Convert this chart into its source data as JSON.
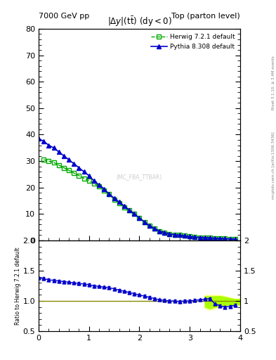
{
  "title_left": "7000 GeV pp",
  "title_right": "Top (parton level)",
  "plot_title": "|\\Delta y|(t\\bar{t}) (dy < 0)",
  "ylabel_ratio": "Ratio to Herwig 7.2.1 default",
  "right_label_top": "Rivet 3.1.10, ≥ 3.4M events",
  "right_label_bottom": "mcplots.cern.ch [arXiv:1306.3436]",
  "watermark": "(MC_FBA_TTBAR)",
  "herwig_x": [
    0.1,
    0.2,
    0.3,
    0.4,
    0.5,
    0.6,
    0.7,
    0.8,
    0.9,
    1.0,
    1.1,
    1.2,
    1.3,
    1.4,
    1.5,
    1.6,
    1.7,
    1.8,
    1.9,
    2.0,
    2.1,
    2.2,
    2.3,
    2.4,
    2.5,
    2.6,
    2.7,
    2.8,
    2.9,
    3.0,
    3.1,
    3.2,
    3.3,
    3.4,
    3.5,
    3.6,
    3.7,
    3.8,
    3.9
  ],
  "herwig_y": [
    30.5,
    30.0,
    29.5,
    28.5,
    27.5,
    26.5,
    25.5,
    24.5,
    23.5,
    22.5,
    21.5,
    20.5,
    19.0,
    17.5,
    15.5,
    14.0,
    12.5,
    11.5,
    10.0,
    8.5,
    7.0,
    5.5,
    4.5,
    3.5,
    3.0,
    2.5,
    2.2,
    2.0,
    1.8,
    1.5,
    1.3,
    1.2,
    1.1,
    1.0,
    0.9,
    0.8,
    0.7,
    0.6,
    0.5
  ],
  "pythia_x": [
    0.0,
    0.1,
    0.2,
    0.3,
    0.4,
    0.5,
    0.6,
    0.7,
    0.8,
    0.9,
    1.0,
    1.1,
    1.2,
    1.3,
    1.4,
    1.5,
    1.6,
    1.7,
    1.8,
    1.9,
    2.0,
    2.1,
    2.2,
    2.3,
    2.4,
    2.5,
    2.6,
    2.7,
    2.8,
    2.9,
    3.0,
    3.1,
    3.2,
    3.3,
    3.4,
    3.5,
    3.6,
    3.7,
    3.8,
    3.9
  ],
  "pythia_y": [
    38.5,
    37.5,
    36.0,
    35.0,
    33.5,
    32.0,
    30.5,
    29.0,
    27.5,
    26.0,
    24.5,
    22.5,
    21.0,
    19.5,
    17.5,
    16.0,
    14.5,
    13.0,
    11.5,
    10.0,
    8.5,
    7.0,
    5.5,
    4.5,
    3.5,
    3.0,
    2.5,
    2.2,
    2.0,
    1.8,
    1.5,
    1.3,
    1.2,
    1.1,
    1.0,
    0.9,
    0.8,
    0.7,
    0.6,
    0.5
  ],
  "ratio_x": [
    0.0,
    0.1,
    0.2,
    0.3,
    0.4,
    0.5,
    0.6,
    0.7,
    0.8,
    0.9,
    1.0,
    1.1,
    1.2,
    1.3,
    1.4,
    1.5,
    1.6,
    1.7,
    1.8,
    1.9,
    2.0,
    2.1,
    2.2,
    2.3,
    2.4,
    2.5,
    2.6,
    2.7,
    2.8,
    2.9,
    3.0,
    3.1,
    3.2,
    3.3,
    3.4,
    3.5,
    3.6,
    3.7,
    3.8,
    3.9
  ],
  "ratio_y": [
    1.38,
    1.37,
    1.35,
    1.34,
    1.33,
    1.32,
    1.31,
    1.3,
    1.29,
    1.28,
    1.27,
    1.25,
    1.24,
    1.23,
    1.22,
    1.2,
    1.18,
    1.16,
    1.14,
    1.12,
    1.1,
    1.08,
    1.06,
    1.04,
    1.02,
    1.01,
    1.0,
    1.0,
    0.99,
    1.0,
    1.0,
    1.01,
    1.02,
    1.03,
    1.04,
    0.95,
    0.92,
    0.9,
    0.91,
    0.93
  ],
  "band_x": [
    3.3,
    3.4,
    3.5,
    3.6,
    3.7,
    3.8,
    3.9,
    4.0
  ],
  "band_y_low": [
    0.88,
    0.85,
    0.88,
    0.9,
    0.92,
    0.92,
    0.93,
    0.93
  ],
  "band_y_high": [
    1.1,
    1.1,
    1.1,
    1.1,
    1.08,
    1.06,
    1.04,
    1.04
  ],
  "herwig_color": "#00aa00",
  "pythia_color": "#0000cc",
  "ratio_line_color": "#888800",
  "band_color_inner": "#aaff00",
  "band_color_outer": "#ffff99",
  "xlim": [
    0,
    4
  ],
  "ylim_main": [
    0,
    80
  ],
  "ylim_ratio": [
    0.5,
    2.0
  ],
  "yticks_main": [
    0,
    10,
    20,
    30,
    40,
    50,
    60,
    70,
    80
  ],
  "yticks_ratio": [
    0.5,
    1.0,
    1.5,
    2.0
  ],
  "legend_herwig": "Herwig 7.2.1 default",
  "legend_pythia": "Pythia 8.308 default"
}
